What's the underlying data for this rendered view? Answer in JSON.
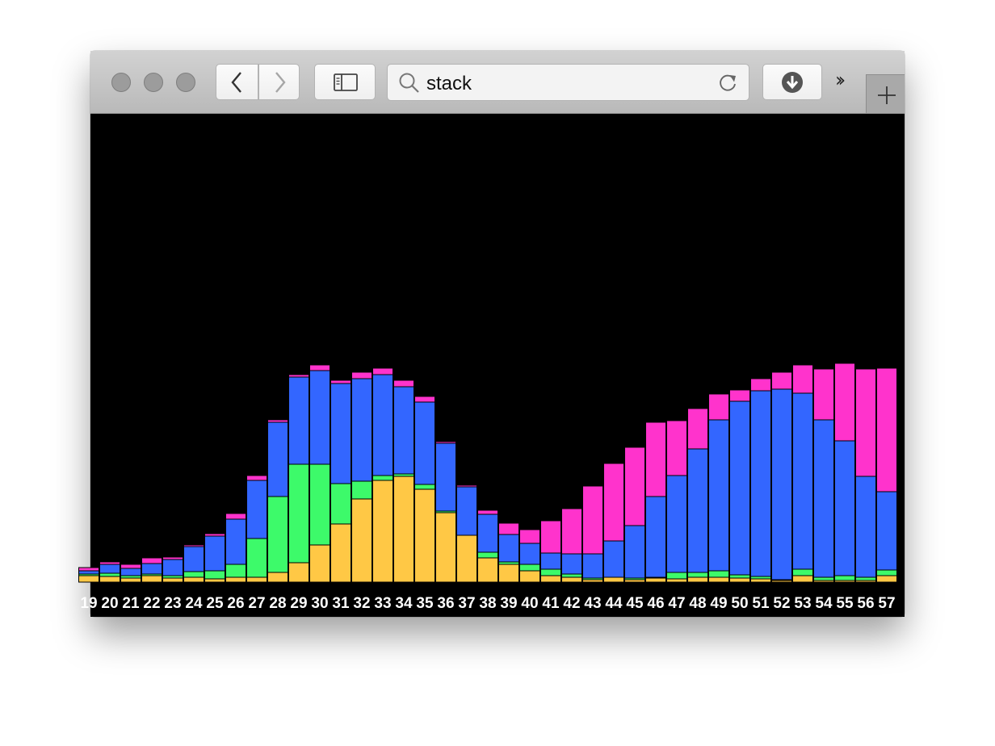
{
  "browser": {
    "address_text": "stack",
    "icons": {
      "back": "chevron-left-icon",
      "forward": "chevron-right-icon",
      "sidebar": "sidebar-icon",
      "search": "search-icon",
      "reload": "reload-icon",
      "downloads": "download-icon",
      "overflow": "double-chevron-right-icon",
      "new_tab": "plus-icon"
    }
  },
  "chart_data": {
    "type": "bar",
    "stacked": true,
    "background": "#000000",
    "categories": [
      "19",
      "20",
      "21",
      "22",
      "23",
      "24",
      "25",
      "26",
      "27",
      "28",
      "29",
      "30",
      "31",
      "32",
      "33",
      "34",
      "35",
      "36",
      "37",
      "38",
      "39",
      "40",
      "41",
      "42",
      "43",
      "44",
      "45",
      "46",
      "47",
      "48",
      "49",
      "50",
      "51",
      "52",
      "53",
      "54",
      "55",
      "56",
      "57"
    ],
    "series": [
      {
        "color": "#ffc845",
        "values": [
          8,
          7,
          5,
          8,
          5,
          6,
          4,
          6,
          6,
          12,
          24,
          46,
          72,
          103,
          126,
          131,
          115,
          86,
          58,
          30,
          22,
          14,
          8,
          6,
          3,
          6,
          3,
          5,
          4,
          6,
          6,
          5,
          4,
          2,
          8,
          2,
          2,
          2,
          8
        ]
      },
      {
        "color": "#3dfa6a",
        "values": [
          2,
          4,
          3,
          2,
          3,
          7,
          10,
          16,
          48,
          94,
          122,
          100,
          50,
          22,
          6,
          3,
          6,
          2,
          0,
          7,
          3,
          8,
          8,
          4,
          2,
          0,
          2,
          1,
          8,
          6,
          8,
          4,
          3,
          1,
          8,
          4,
          6,
          4,
          7
        ]
      },
      {
        "color": "#3366ff",
        "values": [
          4,
          11,
          9,
          13,
          20,
          31,
          43,
          56,
          72,
          92,
          108,
          116,
          124,
          127,
          125,
          108,
          102,
          84,
          60,
          47,
          34,
          26,
          20,
          25,
          30,
          45,
          65,
          100,
          120,
          153,
          187,
          215,
          230,
          236,
          218,
          195,
          167,
          125,
          97
        ]
      },
      {
        "color": "#ff33cc",
        "values": [
          4,
          3,
          5,
          7,
          3,
          2,
          3,
          7,
          6,
          3,
          3,
          7,
          4,
          8,
          8,
          8,
          7,
          2,
          2,
          5,
          14,
          17,
          40,
          56,
          84,
          96,
          97,
          92,
          68,
          50,
          32,
          14,
          15,
          21,
          35,
          63,
          96,
          133,
          153
        ]
      }
    ]
  }
}
